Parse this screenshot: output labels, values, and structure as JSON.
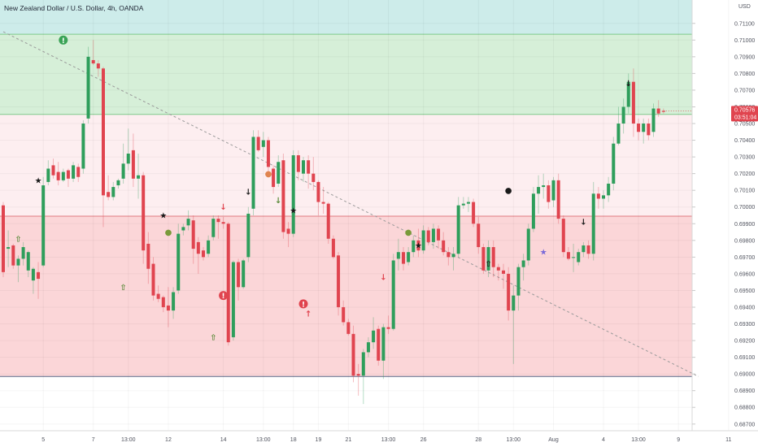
{
  "chart_title": "New Zealand Dollar / U.S. Dollar, 4h, OANDA",
  "currency_label": "USD",
  "colors": {
    "up": "#26a69a",
    "up_candle": "#2e9e5b",
    "down": "#e0444f",
    "zone_top": "#cdecea",
    "zone_green": "#d6efd8",
    "zone_pink": "#fdeef0",
    "zone_red": "#fbd6d8",
    "zone_line_green": "#7ec98a",
    "zone_line_red": "#e07a80",
    "trendline": "#9a9a9a",
    "price_tag": "#e0444f"
  },
  "chart_data": {
    "type": "candlestick",
    "title": "New Zealand Dollar / U.S. Dollar, 4h, OANDA",
    "y_unit": "USD",
    "ylim": [
      0.6866,
      0.7124
    ],
    "y_ticks": [
      "0.71100",
      "0.71000",
      "0.70900",
      "0.70800",
      "0.70700",
      "0.70600",
      "0.70500",
      "0.70400",
      "0.70300",
      "0.70200",
      "0.70100",
      "0.70000",
      "0.69900",
      "0.69800",
      "0.69700",
      "0.69600",
      "0.69500",
      "0.69400",
      "0.69300",
      "0.69200",
      "0.69100",
      "0.69000",
      "0.68900",
      "0.68800",
      "0.68700"
    ],
    "x_ticks": [
      {
        "label": "5",
        "slot": 8
      },
      {
        "label": "7",
        "slot": 18
      },
      {
        "label": "13:00",
        "slot": 25
      },
      {
        "label": "12",
        "slot": 33
      },
      {
        "label": "14",
        "slot": 44
      },
      {
        "label": "13:00",
        "slot": 52
      },
      {
        "label": "18",
        "slot": 58
      },
      {
        "label": "19",
        "slot": 63
      },
      {
        "label": "21",
        "slot": 69
      },
      {
        "label": "13:00",
        "slot": 77
      },
      {
        "label": "26",
        "slot": 84
      },
      {
        "label": "28",
        "slot": 95
      },
      {
        "label": "13:00",
        "slot": 102
      },
      {
        "label": "Aug",
        "slot": 110
      },
      {
        "label": "4",
        "slot": 120
      },
      {
        "label": "13:00",
        "slot": 127
      },
      {
        "label": "9",
        "slot": 135
      },
      {
        "label": "11",
        "slot": 145
      }
    ],
    "zones": [
      {
        "name": "top-band",
        "from": 0.7124,
        "to": 0.71035
      },
      {
        "name": "supply-upper",
        "from": 0.71035,
        "to": 0.70555
      },
      {
        "name": "resistance-light",
        "from": 0.70555,
        "to": 0.69945
      },
      {
        "name": "demand-zone",
        "from": 0.69945,
        "to": 0.68985
      }
    ],
    "horizontal_lines": [
      0.71035,
      0.70555,
      0.69945,
      0.68985
    ],
    "trendline": {
      "from": {
        "slot": 0,
        "price": 0.7105
      },
      "to": {
        "slot": 139,
        "price": 0.68985
      }
    },
    "last_price": "0.70576",
    "countdown": "03:51:04",
    "candles": [
      {
        "o": 0.7001,
        "h": 0.7003,
        "c": 0.6961,
        "l": 0.6958
      },
      {
        "o": 0.6975,
        "h": 0.6986,
        "c": 0.6976,
        "l": 0.6964
      },
      {
        "o": 0.6977,
        "h": 0.6978,
        "c": 0.6965,
        "l": 0.6963
      },
      {
        "o": 0.6965,
        "h": 0.6971,
        "c": 0.6969,
        "l": 0.6955
      },
      {
        "o": 0.6969,
        "h": 0.6979,
        "c": 0.6976,
        "l": 0.6965
      },
      {
        "o": 0.6962,
        "h": 0.6974,
        "c": 0.6973,
        "l": 0.6958
      },
      {
        "o": 0.6956,
        "h": 0.6964,
        "c": 0.6963,
        "l": 0.6948
      },
      {
        "o": 0.6961,
        "h": 0.6967,
        "c": 0.6957,
        "l": 0.6945
      },
      {
        "o": 0.6965,
        "h": 0.7018,
        "c": 0.7013,
        "l": 0.6964
      },
      {
        "o": 0.7015,
        "h": 0.7028,
        "c": 0.7023,
        "l": 0.7013
      },
      {
        "o": 0.7025,
        "h": 0.7029,
        "c": 0.7019,
        "l": 0.7017
      },
      {
        "o": 0.7021,
        "h": 0.7027,
        "c": 0.7016,
        "l": 0.7013
      },
      {
        "o": 0.7016,
        "h": 0.7023,
        "c": 0.7021,
        "l": 0.7015
      },
      {
        "o": 0.7022,
        "h": 0.7023,
        "c": 0.7017,
        "l": 0.7012
      },
      {
        "o": 0.7017,
        "h": 0.7027,
        "c": 0.7025,
        "l": 0.7015
      },
      {
        "o": 0.7024,
        "h": 0.7026,
        "c": 0.7018,
        "l": 0.7015
      },
      {
        "o": 0.7023,
        "h": 0.7052,
        "c": 0.705,
        "l": 0.702
      },
      {
        "o": 0.7053,
        "h": 0.7096,
        "c": 0.709,
        "l": 0.705
      },
      {
        "o": 0.7088,
        "h": 0.71,
        "c": 0.7086,
        "l": 0.7085
      },
      {
        "o": 0.7086,
        "h": 0.7088,
        "c": 0.7083,
        "l": 0.7078
      },
      {
        "o": 0.7083,
        "h": 0.7084,
        "c": 0.7007,
        "l": 0.6988
      },
      {
        "o": 0.7009,
        "h": 0.7019,
        "c": 0.7006,
        "l": 0.7004
      },
      {
        "o": 0.7006,
        "h": 0.7015,
        "c": 0.7012,
        "l": 0.7004
      },
      {
        "o": 0.7013,
        "h": 0.7017,
        "c": 0.7016,
        "l": 0.7011
      },
      {
        "o": 0.7017,
        "h": 0.7038,
        "c": 0.7026,
        "l": 0.7014
      },
      {
        "o": 0.7026,
        "h": 0.7047,
        "c": 0.7032,
        "l": 0.7022
      },
      {
        "o": 0.7034,
        "h": 0.7044,
        "c": 0.7017,
        "l": 0.7012
      },
      {
        "o": 0.7017,
        "h": 0.7032,
        "c": 0.7019,
        "l": 0.7005
      },
      {
        "o": 0.7019,
        "h": 0.7021,
        "c": 0.6974,
        "l": 0.6966
      },
      {
        "o": 0.6978,
        "h": 0.6985,
        "c": 0.6963,
        "l": 0.6954
      },
      {
        "o": 0.6966,
        "h": 0.697,
        "c": 0.6947,
        "l": 0.6944
      },
      {
        "o": 0.6948,
        "h": 0.6953,
        "c": 0.6945,
        "l": 0.6943
      },
      {
        "o": 0.6946,
        "h": 0.6947,
        "c": 0.694,
        "l": 0.6937
      },
      {
        "o": 0.6941,
        "h": 0.6952,
        "c": 0.6938,
        "l": 0.6928
      },
      {
        "o": 0.6938,
        "h": 0.6952,
        "c": 0.6949,
        "l": 0.6933
      },
      {
        "o": 0.695,
        "h": 0.699,
        "c": 0.6984,
        "l": 0.6948
      },
      {
        "o": 0.6986,
        "h": 0.699,
        "c": 0.6988,
        "l": 0.6983
      },
      {
        "o": 0.6989,
        "h": 0.6998,
        "c": 0.6993,
        "l": 0.6986
      },
      {
        "o": 0.6992,
        "h": 0.6995,
        "c": 0.6975,
        "l": 0.6966
      },
      {
        "o": 0.6979,
        "h": 0.6982,
        "c": 0.6972,
        "l": 0.696
      },
      {
        "o": 0.6974,
        "h": 0.6976,
        "c": 0.697,
        "l": 0.6968
      },
      {
        "o": 0.6972,
        "h": 0.6983,
        "c": 0.698,
        "l": 0.697
      },
      {
        "o": 0.6982,
        "h": 0.6995,
        "c": 0.6993,
        "l": 0.698
      },
      {
        "o": 0.6993,
        "h": 0.6995,
        "c": 0.6991,
        "l": 0.6981
      },
      {
        "o": 0.6991,
        "h": 0.6994,
        "c": 0.699,
        "l": 0.6987
      },
      {
        "o": 0.699,
        "h": 0.6991,
        "c": 0.6919,
        "l": 0.6917
      },
      {
        "o": 0.6922,
        "h": 0.6968,
        "c": 0.6967,
        "l": 0.692
      },
      {
        "o": 0.6967,
        "h": 0.6969,
        "c": 0.6952,
        "l": 0.6944
      },
      {
        "o": 0.6952,
        "h": 0.6969,
        "c": 0.6968,
        "l": 0.6951
      },
      {
        "o": 0.697,
        "h": 0.7,
        "c": 0.6996,
        "l": 0.6967
      },
      {
        "o": 0.6999,
        "h": 0.7046,
        "c": 0.7042,
        "l": 0.6995
      },
      {
        "o": 0.7042,
        "h": 0.7046,
        "c": 0.7034,
        "l": 0.7033
      },
      {
        "o": 0.7036,
        "h": 0.7045,
        "c": 0.704,
        "l": 0.703
      },
      {
        "o": 0.704,
        "h": 0.7042,
        "c": 0.7024,
        "l": 0.7021
      },
      {
        "o": 0.7023,
        "h": 0.7025,
        "c": 0.7012,
        "l": 0.7008
      },
      {
        "o": 0.7014,
        "h": 0.7031,
        "c": 0.7027,
        "l": 0.7012
      },
      {
        "o": 0.7028,
        "h": 0.7032,
        "c": 0.6985,
        "l": 0.6981
      },
      {
        "o": 0.6987,
        "h": 0.6991,
        "c": 0.6984,
        "l": 0.6976
      },
      {
        "o": 0.6984,
        "h": 0.7034,
        "c": 0.7031,
        "l": 0.6982
      },
      {
        "o": 0.7031,
        "h": 0.7034,
        "c": 0.7021,
        "l": 0.7016
      },
      {
        "o": 0.702,
        "h": 0.703,
        "c": 0.7028,
        "l": 0.7015
      },
      {
        "o": 0.7028,
        "h": 0.7031,
        "c": 0.702,
        "l": 0.7011
      },
      {
        "o": 0.702,
        "h": 0.703,
        "c": 0.7015,
        "l": 0.701
      },
      {
        "o": 0.7015,
        "h": 0.7016,
        "c": 0.7003,
        "l": 0.6995
      },
      {
        "o": 0.7003,
        "h": 0.7012,
        "c": 0.7002,
        "l": 0.6996
      },
      {
        "o": 0.7002,
        "h": 0.7003,
        "c": 0.6981,
        "l": 0.6978
      },
      {
        "o": 0.6981,
        "h": 0.6983,
        "c": 0.697,
        "l": 0.6969
      },
      {
        "o": 0.6971,
        "h": 0.6973,
        "c": 0.694,
        "l": 0.6935
      },
      {
        "o": 0.694,
        "h": 0.6944,
        "c": 0.6931,
        "l": 0.6929
      },
      {
        "o": 0.6931,
        "h": 0.6933,
        "c": 0.6924,
        "l": 0.6923
      },
      {
        "o": 0.6924,
        "h": 0.6929,
        "c": 0.6899,
        "l": 0.6895
      },
      {
        "o": 0.69,
        "h": 0.6906,
        "c": 0.6899,
        "l": 0.6887
      },
      {
        "o": 0.6899,
        "h": 0.6915,
        "c": 0.6913,
        "l": 0.6882
      },
      {
        "o": 0.6913,
        "h": 0.6922,
        "c": 0.6919,
        "l": 0.691
      },
      {
        "o": 0.6919,
        "h": 0.6934,
        "c": 0.6926,
        "l": 0.6915
      },
      {
        "o": 0.6927,
        "h": 0.6929,
        "c": 0.6908,
        "l": 0.6905
      },
      {
        "o": 0.6908,
        "h": 0.693,
        "c": 0.6928,
        "l": 0.6897
      },
      {
        "o": 0.6928,
        "h": 0.6935,
        "c": 0.6927,
        "l": 0.6924
      },
      {
        "o": 0.6927,
        "h": 0.6972,
        "c": 0.6968,
        "l": 0.6926
      },
      {
        "o": 0.6969,
        "h": 0.6981,
        "c": 0.6973,
        "l": 0.6962
      },
      {
        "o": 0.6973,
        "h": 0.6976,
        "c": 0.6966,
        "l": 0.6962
      },
      {
        "o": 0.6967,
        "h": 0.6976,
        "c": 0.6973,
        "l": 0.6965
      },
      {
        "o": 0.6973,
        "h": 0.6983,
        "c": 0.698,
        "l": 0.697
      },
      {
        "o": 0.698,
        "h": 0.6987,
        "c": 0.6974,
        "l": 0.697
      },
      {
        "o": 0.6974,
        "h": 0.6989,
        "c": 0.6986,
        "l": 0.6972
      },
      {
        "o": 0.6986,
        "h": 0.6988,
        "c": 0.6979,
        "l": 0.6977
      },
      {
        "o": 0.6979,
        "h": 0.699,
        "c": 0.6987,
        "l": 0.6975
      },
      {
        "o": 0.6987,
        "h": 0.6989,
        "c": 0.698,
        "l": 0.6975
      },
      {
        "o": 0.698,
        "h": 0.6985,
        "c": 0.6973,
        "l": 0.6971
      },
      {
        "o": 0.6973,
        "h": 0.6976,
        "c": 0.697,
        "l": 0.6965
      },
      {
        "o": 0.697,
        "h": 0.6976,
        "c": 0.6972,
        "l": 0.6962
      },
      {
        "o": 0.6972,
        "h": 0.7006,
        "c": 0.7001,
        "l": 0.697
      },
      {
        "o": 0.7001,
        "h": 0.7006,
        "c": 0.7002,
        "l": 0.6999
      },
      {
        "o": 0.7002,
        "h": 0.7006,
        "c": 0.7003,
        "l": 0.6997
      },
      {
        "o": 0.7003,
        "h": 0.7005,
        "c": 0.699,
        "l": 0.6988
      },
      {
        "o": 0.699,
        "h": 0.6994,
        "c": 0.6976,
        "l": 0.6972
      },
      {
        "o": 0.6976,
        "h": 0.6978,
        "c": 0.6962,
        "l": 0.696
      },
      {
        "o": 0.6962,
        "h": 0.698,
        "c": 0.6976,
        "l": 0.6958
      },
      {
        "o": 0.6976,
        "h": 0.698,
        "c": 0.6964,
        "l": 0.6958
      },
      {
        "o": 0.6964,
        "h": 0.6966,
        "c": 0.6962,
        "l": 0.6956
      },
      {
        "o": 0.6962,
        "h": 0.6966,
        "c": 0.696,
        "l": 0.6951
      },
      {
        "o": 0.696,
        "h": 0.6964,
        "c": 0.6938,
        "l": 0.6932
      },
      {
        "o": 0.6938,
        "h": 0.6953,
        "c": 0.6947,
        "l": 0.6906
      },
      {
        "o": 0.6947,
        "h": 0.6966,
        "c": 0.6964,
        "l": 0.6938
      },
      {
        "o": 0.6964,
        "h": 0.6972,
        "c": 0.6968,
        "l": 0.6956
      },
      {
        "o": 0.6968,
        "h": 0.699,
        "c": 0.6987,
        "l": 0.6965
      },
      {
        "o": 0.6987,
        "h": 0.7012,
        "c": 0.7008,
        "l": 0.6985
      },
      {
        "o": 0.7008,
        "h": 0.7019,
        "c": 0.7012,
        "l": 0.6996
      },
      {
        "o": 0.7012,
        "h": 0.702,
        "c": 0.7013,
        "l": 0.7005
      },
      {
        "o": 0.7013,
        "h": 0.7016,
        "c": 0.7003,
        "l": 0.6999
      },
      {
        "o": 0.7004,
        "h": 0.7018,
        "c": 0.7016,
        "l": 0.7
      },
      {
        "o": 0.7016,
        "h": 0.702,
        "c": 0.6993,
        "l": 0.699
      },
      {
        "o": 0.6993,
        "h": 0.6995,
        "c": 0.6973,
        "l": 0.697
      },
      {
        "o": 0.6973,
        "h": 0.6976,
        "c": 0.6969,
        "l": 0.6968
      },
      {
        "o": 0.697,
        "h": 0.6978,
        "c": 0.697,
        "l": 0.6961
      },
      {
        "o": 0.6967,
        "h": 0.6975,
        "c": 0.6973,
        "l": 0.6965
      },
      {
        "o": 0.6973,
        "h": 0.6979,
        "c": 0.6977,
        "l": 0.697
      },
      {
        "o": 0.6977,
        "h": 0.698,
        "c": 0.6972,
        "l": 0.6969
      },
      {
        "o": 0.6972,
        "h": 0.7015,
        "c": 0.7008,
        "l": 0.6968
      },
      {
        "o": 0.7008,
        "h": 0.7012,
        "c": 0.7005,
        "l": 0.6999
      },
      {
        "o": 0.7005,
        "h": 0.701,
        "c": 0.7007,
        "l": 0.6999
      },
      {
        "o": 0.7007,
        "h": 0.7018,
        "c": 0.7014,
        "l": 0.7003
      },
      {
        "o": 0.7014,
        "h": 0.7042,
        "c": 0.7038,
        "l": 0.701
      },
      {
        "o": 0.7038,
        "h": 0.706,
        "c": 0.705,
        "l": 0.7037
      },
      {
        "o": 0.705,
        "h": 0.7065,
        "c": 0.706,
        "l": 0.7044
      },
      {
        "o": 0.706,
        "h": 0.708,
        "c": 0.7075,
        "l": 0.7056
      },
      {
        "o": 0.7075,
        "h": 0.7083,
        "c": 0.705,
        "l": 0.7042
      },
      {
        "o": 0.705,
        "h": 0.7053,
        "c": 0.7045,
        "l": 0.704
      },
      {
        "o": 0.7045,
        "h": 0.7053,
        "c": 0.705,
        "l": 0.7038
      },
      {
        "o": 0.705,
        "h": 0.7053,
        "c": 0.7043,
        "l": 0.704
      },
      {
        "o": 0.7045,
        "h": 0.7062,
        "c": 0.7059,
        "l": 0.7042
      },
      {
        "o": 0.7059,
        "h": 0.7064,
        "c": 0.7056,
        "l": 0.7054
      },
      {
        "o": 0.70576,
        "h": 0.7059,
        "c": 0.7057,
        "l": 0.7056
      }
    ],
    "markers": [
      {
        "slot": 7,
        "price": 0.7016,
        "glyph": "★",
        "color": "#1a1a1a",
        "kind": "star"
      },
      {
        "slot": 3,
        "price": 0.6981,
        "glyph": "⇧",
        "color": "#5a8a3a",
        "kind": "up-arrow"
      },
      {
        "slot": 12,
        "price": 0.71,
        "glyph": "!",
        "color": "#ffffff",
        "bg": "#3aa356",
        "kind": "alert-circle"
      },
      {
        "slot": 24,
        "price": 0.6952,
        "glyph": "⇧",
        "color": "#5a8a3a",
        "kind": "up-arrow"
      },
      {
        "slot": 32,
        "price": 0.6995,
        "glyph": "★",
        "color": "#1a1a1a",
        "kind": "star"
      },
      {
        "slot": 33,
        "price": 0.6985,
        "glyph": "●",
        "color": "#7a9a3a",
        "kind": "dot"
      },
      {
        "slot": 42,
        "price": 0.6922,
        "glyph": "⇧",
        "color": "#5a8a3a",
        "kind": "up-arrow"
      },
      {
        "slot": 44,
        "price": 0.6947,
        "glyph": "!",
        "color": "#ffffff",
        "bg": "#e0444f",
        "kind": "alert-circle"
      },
      {
        "slot": 44,
        "price": 0.7,
        "glyph": "↓",
        "color": "#e0444f",
        "kind": "down-arrow"
      },
      {
        "slot": 49,
        "price": 0.7009,
        "glyph": "↓",
        "color": "#1a1a1a",
        "kind": "down-arrow"
      },
      {
        "slot": 53,
        "price": 0.702,
        "glyph": "●",
        "color": "#e0844f",
        "kind": "dot"
      },
      {
        "slot": 55,
        "price": 0.7004,
        "glyph": "↓",
        "color": "#5a8a3a",
        "kind": "down-arrow"
      },
      {
        "slot": 58,
        "price": 0.6998,
        "glyph": "★",
        "color": "#1a1a1a",
        "kind": "star"
      },
      {
        "slot": 60,
        "price": 0.6942,
        "glyph": "!",
        "color": "#ffffff",
        "bg": "#e0444f",
        "kind": "alert-circle"
      },
      {
        "slot": 61,
        "price": 0.6936,
        "glyph": "↑",
        "color": "#e0444f",
        "kind": "up-arrow"
      },
      {
        "slot": 76,
        "price": 0.6958,
        "glyph": "↓",
        "color": "#e0444f",
        "kind": "down-arrow"
      },
      {
        "slot": 81,
        "price": 0.6985,
        "glyph": "●",
        "color": "#7a9a3a",
        "kind": "dot"
      },
      {
        "slot": 83,
        "price": 0.6977,
        "glyph": "★",
        "color": "#1a1a1a",
        "kind": "star"
      },
      {
        "slot": 97,
        "price": 0.6966,
        "glyph": "⇧",
        "color": "#1a1a1a",
        "kind": "up-arrow"
      },
      {
        "slot": 101,
        "price": 0.701,
        "glyph": "●",
        "color": "#1a1a1a",
        "kind": "dot"
      },
      {
        "slot": 108,
        "price": 0.6973,
        "glyph": "★",
        "color": "#7a6ad8",
        "kind": "star"
      },
      {
        "slot": 116,
        "price": 0.6991,
        "glyph": "↓",
        "color": "#1a1a1a",
        "kind": "down-arrow"
      },
      {
        "slot": 125,
        "price": 0.7074,
        "glyph": "↓",
        "color": "#1a1a1a",
        "kind": "down-arrow"
      }
    ]
  }
}
